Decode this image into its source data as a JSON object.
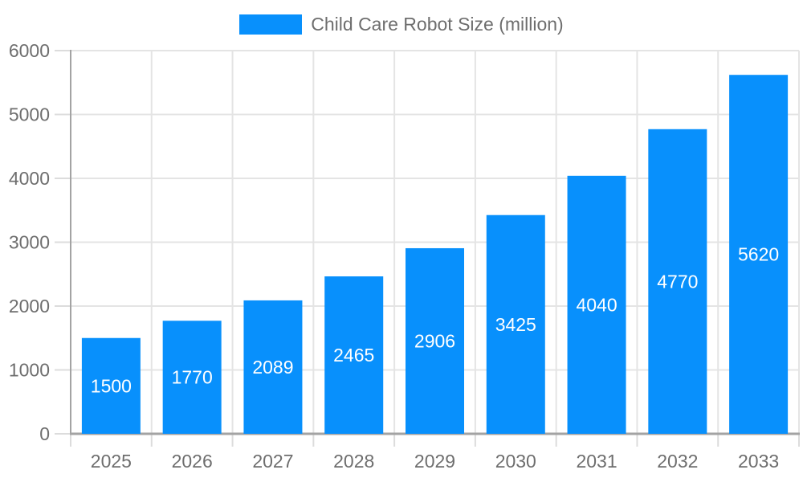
{
  "chart_data": {
    "type": "bar",
    "title": "Child Care Robot Size (million)",
    "legend_position": "top",
    "categories": [
      "2025",
      "2026",
      "2027",
      "2028",
      "2029",
      "2030",
      "2031",
      "2032",
      "2033"
    ],
    "series": [
      {
        "name": "Child Care Robot Size (million)",
        "values": [
          1500,
          1770,
          2089,
          2465,
          2906,
          3425,
          4040,
          4770,
          5620
        ]
      }
    ],
    "value_labels": [
      "1500",
      "1770",
      "2089",
      "2465",
      "2906",
      "3425",
      "4040",
      "4770",
      "5620"
    ],
    "xlabel": "",
    "ylabel": "",
    "ylim": [
      0,
      6000
    ],
    "yticks": [
      0,
      1000,
      2000,
      3000,
      4000,
      5000,
      6000
    ],
    "grid": true,
    "colors": {
      "bar": "#0890FC",
      "grid": "#e4e4e4",
      "axis": "#a3a3a3",
      "tick": "#dcdcdc",
      "axis_label": "#6e6e6e",
      "value_label": "#ffffff",
      "background": "#ffffff"
    }
  }
}
